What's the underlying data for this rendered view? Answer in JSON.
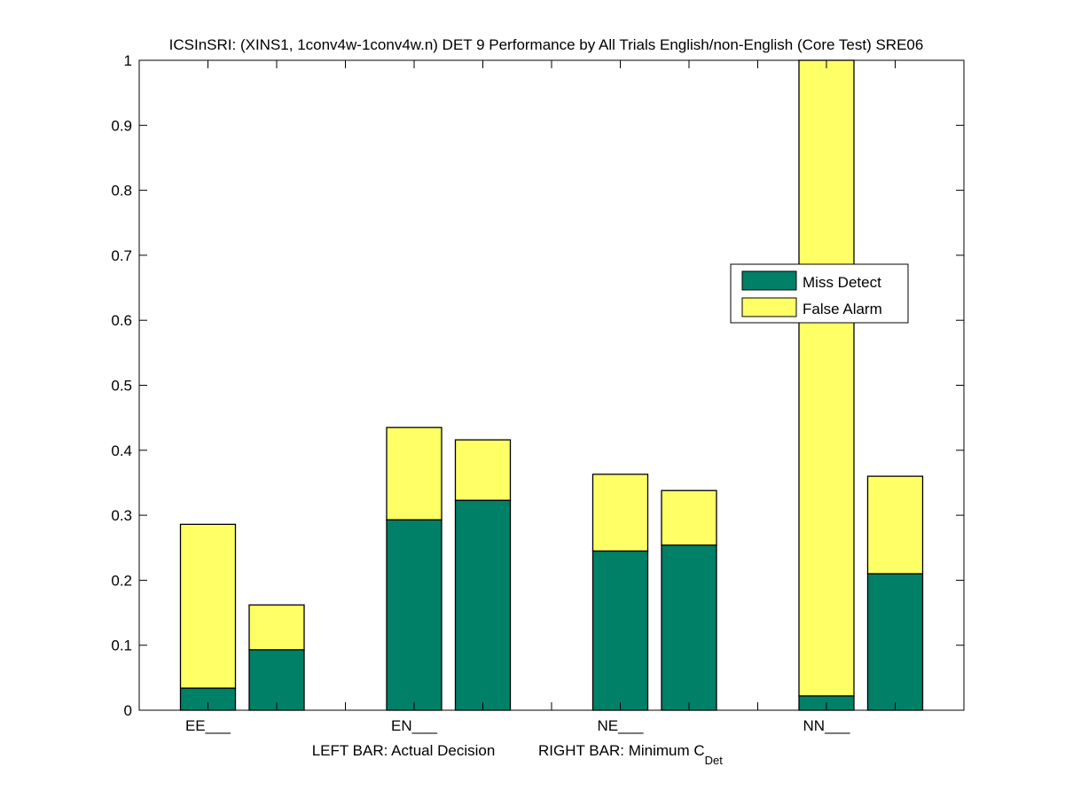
{
  "chart_data": {
    "type": "bar",
    "stacked": true,
    "title": "ICSInSRI: (XINS1, 1conv4w-1conv4w.n) DET 9 Performance by All Trials English/non-English (Core Test) SRE06",
    "xlabel_left": "LEFT BAR: Actual Decision",
    "xlabel_right_main": "RIGHT BAR: Minimum C",
    "xlabel_right_sub": "Det",
    "ylabel": "",
    "ylim": [
      0,
      1
    ],
    "xlim": [
      0,
      12
    ],
    "yticks": [
      0,
      0.1,
      0.2,
      0.3,
      0.4,
      0.5,
      0.6,
      0.7,
      0.8,
      0.9,
      1
    ],
    "ytick_labels": [
      "0",
      "0.1",
      "0.2",
      "0.3",
      "0.4",
      "0.5",
      "0.6",
      "0.7",
      "0.8",
      "0.9",
      "1"
    ],
    "xticks": [
      1,
      2,
      3,
      4,
      5,
      6,
      7,
      8,
      9,
      10,
      11
    ],
    "xtick_labels": [
      "EE___",
      "",
      "",
      "EN___",
      "",
      "",
      "NE___",
      "",
      "",
      "NN___",
      ""
    ],
    "categories": [
      "EE___",
      "EN___",
      "NE___",
      "NN___"
    ],
    "bar_positions": {
      "left": [
        1,
        4,
        7,
        10
      ],
      "right": [
        2,
        5,
        8,
        11
      ]
    },
    "series": [
      {
        "name": "Miss Detect",
        "color": "#008066",
        "left_values": [
          0.034,
          0.293,
          0.245,
          0.022
        ],
        "right_values": [
          0.093,
          0.323,
          0.254,
          0.21
        ]
      },
      {
        "name": "False Alarm",
        "color": "#FFFF66",
        "left_values": [
          0.252,
          0.142,
          0.118,
          0.978
        ],
        "right_values": [
          0.069,
          0.093,
          0.084,
          0.15
        ]
      }
    ],
    "legend": {
      "position": "center-right",
      "entries": [
        "Miss Detect",
        "False Alarm"
      ]
    },
    "grid": false
  }
}
